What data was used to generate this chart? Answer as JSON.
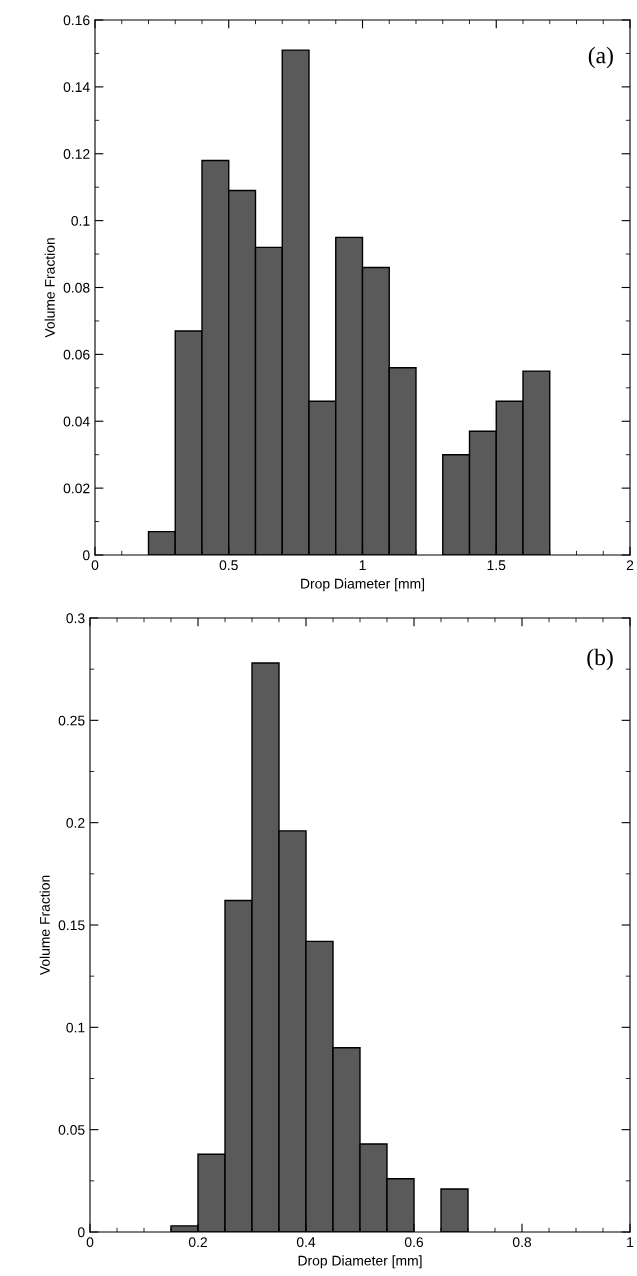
{
  "chart_data": [
    {
      "type": "histogram",
      "xlabel": "Drop Diameter [mm]",
      "ylabel": "Volume Fraction",
      "annotations": [
        "(a)"
      ],
      "color": "#5a5a5a",
      "bins": [
        0.2,
        0.3,
        0.4,
        0.5,
        0.6,
        0.7,
        0.8,
        0.9,
        1.0,
        1.1,
        1.2,
        1.3,
        1.4,
        1.5,
        1.6,
        1.7
      ],
      "values": [
        0.007,
        0.067,
        0.118,
        0.109,
        0.092,
        0.151,
        0.046,
        0.095,
        0.086,
        0.056,
        null,
        0.03,
        0.037,
        0.046,
        0.055
      ],
      "xlim": [
        0,
        2
      ],
      "xticks": [
        0,
        0.5,
        1,
        1.5,
        2
      ],
      "ylim": [
        0,
        0.16
      ],
      "yticks": [
        0,
        0.02,
        0.04,
        0.06,
        0.08,
        0.1,
        0.12,
        0.14,
        0.16
      ],
      "grid": false
    },
    {
      "type": "histogram",
      "xlabel": "Drop Diameter [mm]",
      "ylabel": "Volume Fraction",
      "annotations": [
        "(b)"
      ],
      "color": "#5a5a5a",
      "bins": [
        0.15,
        0.2,
        0.25,
        0.3,
        0.35,
        0.4,
        0.45,
        0.5,
        0.55,
        0.6,
        0.65,
        0.7
      ],
      "values": [
        0.003,
        0.038,
        0.162,
        0.278,
        0.196,
        0.142,
        0.09,
        0.043,
        0.026,
        null,
        0.021
      ],
      "xlim": [
        0,
        1
      ],
      "xticks": [
        0,
        0.2,
        0.4,
        0.6,
        0.8,
        1
      ],
      "ylim": [
        0,
        0.3
      ],
      "yticks": [
        0,
        0.05,
        0.1,
        0.15,
        0.2,
        0.25,
        0.3
      ],
      "grid": false
    }
  ]
}
